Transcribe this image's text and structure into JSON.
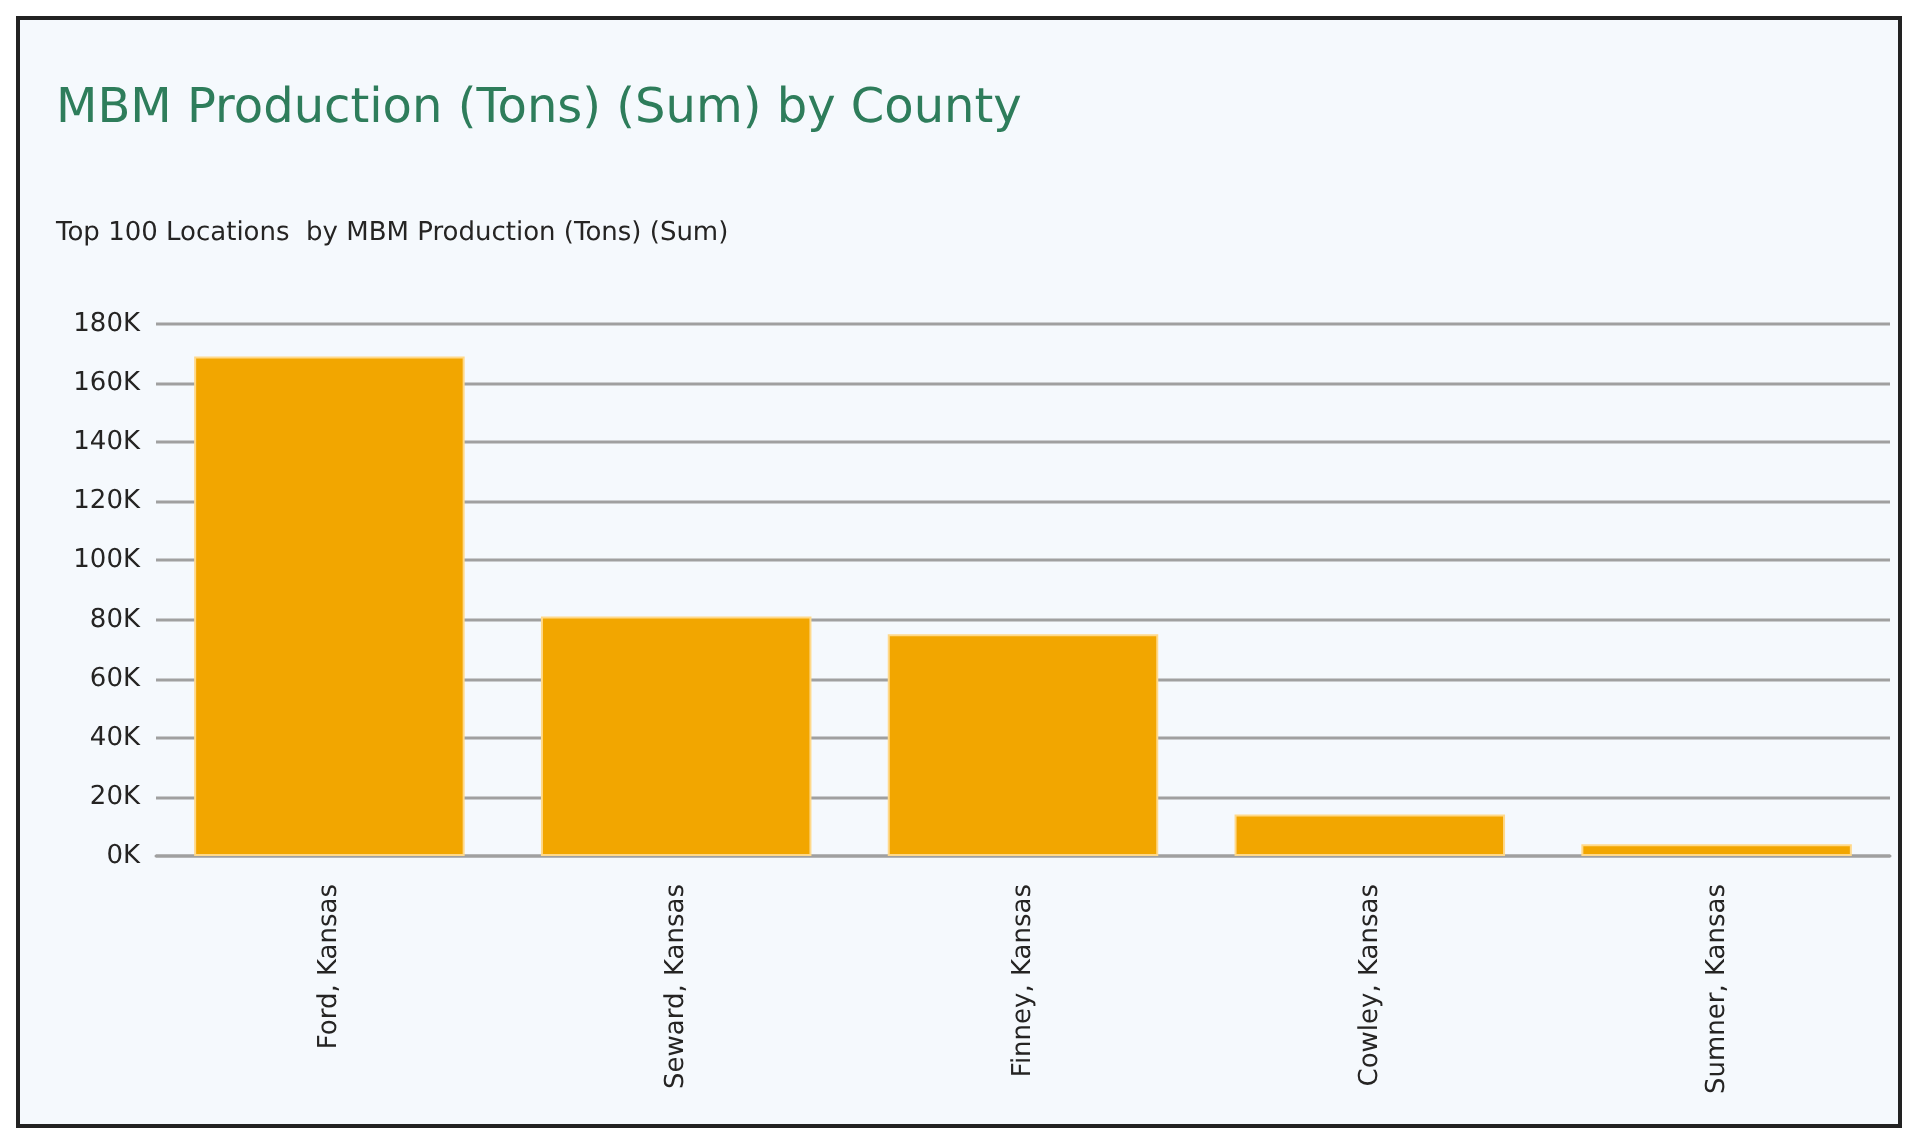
{
  "chart_data": {
    "type": "bar",
    "title": "MBM Production (Tons) (Sum) by County",
    "subtitle": "Top 100 Locations  by MBM Production (Tons) (Sum)",
    "categories": [
      "Ford, Kansas",
      "Seward, Kansas",
      "Finney, Kansas",
      "Cowley, Kansas",
      "Sumner, Kansas"
    ],
    "values": [
      169000,
      81000,
      75000,
      14000,
      4000
    ],
    "color": "#f2a600",
    "ylim": [
      0,
      180000
    ],
    "yticks": [
      {
        "value": 0,
        "label": "0K"
      },
      {
        "value": 20000,
        "label": "20K"
      },
      {
        "value": 40000,
        "label": "40K"
      },
      {
        "value": 60000,
        "label": "60K"
      },
      {
        "value": 80000,
        "label": "80K"
      },
      {
        "value": 100000,
        "label": "100K"
      },
      {
        "value": 120000,
        "label": "120K"
      },
      {
        "value": 140000,
        "label": "140K"
      },
      {
        "value": 160000,
        "label": "160K"
      },
      {
        "value": 180000,
        "label": "180K"
      }
    ],
    "grid": true
  }
}
